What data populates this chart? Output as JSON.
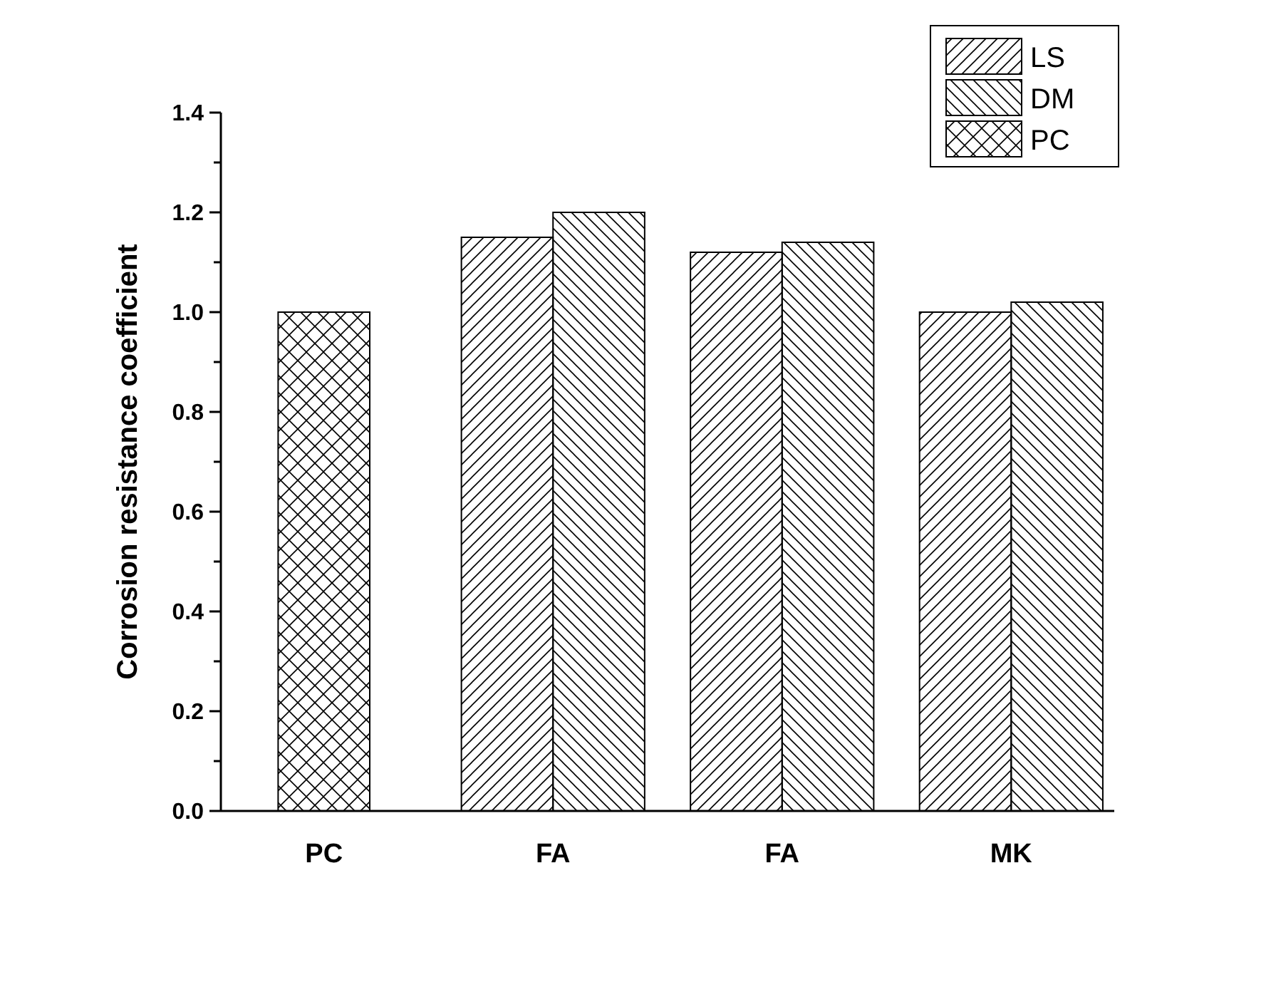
{
  "chart_data": {
    "type": "bar",
    "ylabel": "Corrosion resistance coefficient",
    "categories": [
      "PC",
      "FA",
      "FA",
      "MK"
    ],
    "series": [
      {
        "name": "LS",
        "color": "#000000",
        "values": [
          null,
          1.15,
          1.12,
          1.0
        ]
      },
      {
        "name": "DM",
        "color": "#000000",
        "values": [
          null,
          1.2,
          1.14,
          1.02
        ]
      },
      {
        "name": "PC",
        "color": "#000000",
        "values": [
          1.0,
          null,
          null,
          null
        ]
      }
    ],
    "ylim": [
      0,
      1.4
    ],
    "yticks": [
      {
        "value": 0,
        "label": "0.0"
      },
      {
        "value": 0.1,
        "label": null
      },
      {
        "value": 0.2,
        "label": "0.2"
      },
      {
        "value": 0.3,
        "label": null
      },
      {
        "value": 0.4,
        "label": "0.4"
      },
      {
        "value": 0.5,
        "label": null
      },
      {
        "value": 0.6,
        "label": "0.6"
      },
      {
        "value": 0.7,
        "label": null
      },
      {
        "value": 0.8,
        "label": "0.8"
      },
      {
        "value": 0.9,
        "label": null
      },
      {
        "value": 1,
        "label": "1.0"
      },
      {
        "value": 1.1,
        "label": null
      },
      {
        "value": 1.2,
        "label": "1.2"
      },
      {
        "value": 1.3,
        "label": null
      },
      {
        "value": 1.4,
        "label": "1.4"
      }
    ],
    "legend": "top right"
  }
}
